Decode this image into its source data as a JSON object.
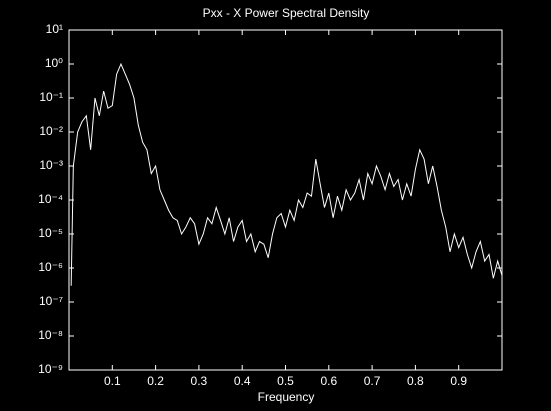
{
  "chart_data": {
    "type": "line",
    "title": "Pxx - X Power Spectral Density",
    "x_label": "Frequency",
    "color": "#ffffff",
    "log_y": true,
    "xlim": [
      0,
      1
    ],
    "xticks": [
      0.1,
      0.2,
      0.3,
      0.4,
      0.5,
      0.6,
      0.7,
      0.8,
      0.9
    ],
    "ylim": [
      1e-09,
      10
    ],
    "yticks": [
      {
        "value": 1e-09,
        "label": "10⁻⁹"
      },
      {
        "value": 1e-08,
        "label": "10⁻⁸"
      },
      {
        "value": 1e-07,
        "label": "10⁻⁷"
      },
      {
        "value": 1e-06,
        "label": "10⁻⁶"
      },
      {
        "value": 1e-05,
        "label": "10⁻⁵"
      },
      {
        "value": 0.0001,
        "label": "10⁻⁴"
      },
      {
        "value": 0.001,
        "label": "10⁻³"
      },
      {
        "value": 0.01,
        "label": "10⁻²"
      },
      {
        "value": 0.1,
        "label": "10⁻¹"
      },
      {
        "value": 1,
        "label": "10⁰"
      },
      {
        "value": 10,
        "label": "10¹"
      }
    ],
    "x": [
      0.005,
      0.01,
      0.02,
      0.03,
      0.04,
      0.05,
      0.06,
      0.07,
      0.08,
      0.09,
      0.1,
      0.11,
      0.12,
      0.13,
      0.14,
      0.15,
      0.16,
      0.17,
      0.18,
      0.19,
      0.2,
      0.21,
      0.22,
      0.23,
      0.24,
      0.25,
      0.26,
      0.27,
      0.28,
      0.29,
      0.3,
      0.31,
      0.32,
      0.33,
      0.34,
      0.35,
      0.36,
      0.37,
      0.38,
      0.39,
      0.4,
      0.41,
      0.42,
      0.43,
      0.44,
      0.45,
      0.46,
      0.47,
      0.48,
      0.49,
      0.5,
      0.51,
      0.52,
      0.53,
      0.54,
      0.55,
      0.56,
      0.57,
      0.58,
      0.59,
      0.6,
      0.61,
      0.62,
      0.63,
      0.64,
      0.65,
      0.66,
      0.67,
      0.68,
      0.69,
      0.7,
      0.71,
      0.72,
      0.73,
      0.74,
      0.75,
      0.76,
      0.77,
      0.78,
      0.79,
      0.8,
      0.81,
      0.82,
      0.83,
      0.84,
      0.85,
      0.86,
      0.87,
      0.88,
      0.89,
      0.9,
      0.91,
      0.92,
      0.93,
      0.94,
      0.95,
      0.96,
      0.97,
      0.98,
      0.99,
      1.0
    ],
    "values": [
      3e-07,
      0.001,
      0.01,
      0.02,
      0.03,
      0.003,
      0.1,
      0.03,
      0.16,
      0.05,
      0.06,
      0.5,
      1,
      0.5,
      0.25,
      0.1,
      0.016,
      0.005,
      0.003,
      0.0006,
      0.001,
      0.0002,
      0.0001,
      5e-05,
      3e-05,
      2.5e-05,
      1e-05,
      1.6e-05,
      3e-05,
      2e-05,
      5e-06,
      1e-05,
      3e-05,
      2e-05,
      6e-05,
      2.5e-05,
      1e-05,
      3e-05,
      6e-06,
      1.6e-05,
      2.5e-05,
      6e-06,
      1e-05,
      3e-06,
      6e-06,
      5e-06,
      2e-06,
      1e-05,
      3e-05,
      4e-05,
      1.6e-05,
      5e-05,
      2.5e-05,
      0.0001,
      6e-05,
      0.00016,
      0.00013,
      0.0016,
      0.0003,
      6e-05,
      0.00016,
      3e-05,
      0.00013,
      5e-05,
      0.0002,
      0.0001,
      0.00016,
      0.0004,
      0.0001,
      0.0006,
      0.0003,
      0.001,
      0.0005,
      0.0002,
      0.0006,
      0.00025,
      0.0004,
      0.0001,
      0.0003,
      0.00013,
      0.0008,
      0.003,
      0.0016,
      0.0003,
      0.001,
      0.00025,
      5e-05,
      1.6e-05,
      3e-06,
      1e-05,
      4e-06,
      8e-06,
      2.5e-06,
      1e-06,
      3e-06,
      6e-06,
      1.6e-06,
      2.5e-06,
      5e-07,
      1.6e-06,
      6e-07
    ]
  }
}
